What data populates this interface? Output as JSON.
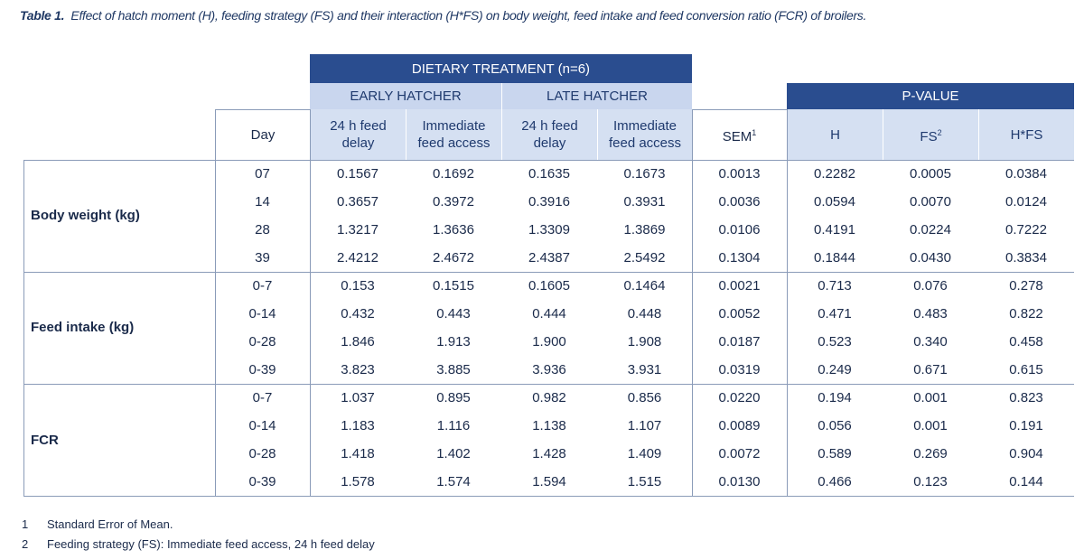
{
  "caption": {
    "label": "Table 1.",
    "text": "Effect of hatch moment (H), feeding strategy (FS) and their interaction (H*FS) on body weight, feed intake and feed conversion ratio (FCR) of broilers."
  },
  "headers": {
    "dietary_treatment": "DIETARY TREATMENT (n=6)",
    "early_hatcher": "EARLY HATCHER",
    "late_hatcher": "LATE HATCHER",
    "p_value": "P-VALUE",
    "day": "Day",
    "early_24h_line1": "24 h feed",
    "early_24h_line2": "delay",
    "early_imm_line1": "Immediate",
    "early_imm_line2": "feed access",
    "late_24h_line1": "24 h feed",
    "late_24h_line2": "delay",
    "late_imm_line1": "Immediate",
    "late_imm_line2": "feed access",
    "sem": "SEM",
    "sem_sup": "1",
    "h": "H",
    "fs": "FS",
    "fs_sup": "2",
    "hfs": "H*FS"
  },
  "groups": [
    {
      "label": "Body weight (kg)",
      "rows": [
        [
          "07",
          "0.1567",
          "0.1692",
          "0.1635",
          "0.1673",
          "0.0013",
          "0.2282",
          "0.0005",
          "0.0384"
        ],
        [
          "14",
          "0.3657",
          "0.3972",
          "0.3916",
          "0.3931",
          "0.0036",
          "0.0594",
          "0.0070",
          "0.0124"
        ],
        [
          "28",
          "1.3217",
          "1.3636",
          "1.3309",
          "1.3869",
          "0.0106",
          "0.4191",
          "0.0224",
          "0.7222"
        ],
        [
          "39",
          "2.4212",
          "2.4672",
          "2.4387",
          "2.5492",
          "0.1304",
          "0.1844",
          "0.0430",
          "0.3834"
        ]
      ]
    },
    {
      "label": "Feed intake (kg)",
      "rows": [
        [
          "0-7",
          "0.153",
          "0.1515",
          "0.1605",
          "0.1464",
          "0.0021",
          "0.713",
          "0.076",
          "0.278"
        ],
        [
          "0-14",
          "0.432",
          "0.443",
          "0.444",
          "0.448",
          "0.0052",
          "0.471",
          "0.483",
          "0.822"
        ],
        [
          "0-28",
          "1.846",
          "1.913",
          "1.900",
          "1.908",
          "0.0187",
          "0.523",
          "0.340",
          "0.458"
        ],
        [
          "0-39",
          "3.823",
          "3.885",
          "3.936",
          "3.931",
          "0.0319",
          "0.249",
          "0.671",
          "0.615"
        ]
      ]
    },
    {
      "label": "FCR",
      "rows": [
        [
          "0-7",
          "1.037",
          "0.895",
          "0.982",
          "0.856",
          "0.0220",
          "0.194",
          "0.001",
          "0.823"
        ],
        [
          "0-14",
          "1.183",
          "1.116",
          "1.138",
          "1.107",
          "0.0089",
          "0.056",
          "0.001",
          "0.191"
        ],
        [
          "0-28",
          "1.418",
          "1.402",
          "1.428",
          "1.409",
          "0.0072",
          "0.589",
          "0.269",
          "0.904"
        ],
        [
          "0-39",
          "1.578",
          "1.574",
          "1.594",
          "1.515",
          "0.0130",
          "0.466",
          "0.123",
          "0.144"
        ]
      ]
    }
  ],
  "footnotes": [
    {
      "num": "1",
      "text": "Standard Error of Mean."
    },
    {
      "num": "2",
      "text": "Feeding strategy (FS): Immediate feed access, 24 h feed delay"
    }
  ]
}
